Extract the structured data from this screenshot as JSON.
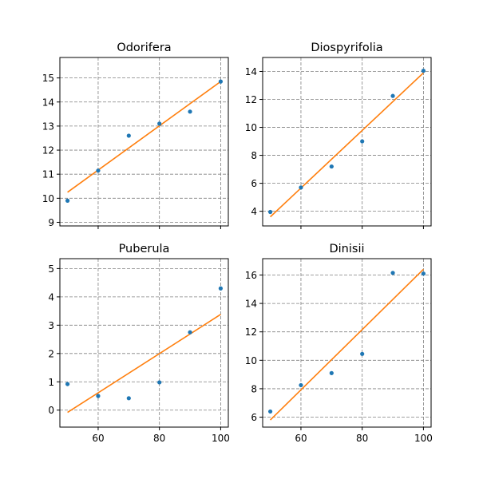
{
  "colors": {
    "points": "#1f77b4",
    "fit_line": "#ff7f0e",
    "grid": "#808080",
    "axes": "#000000"
  },
  "chart_data": [
    {
      "type": "scatter",
      "title": "Odorifera",
      "x": [
        50,
        60,
        70,
        80,
        90,
        100
      ],
      "y": [
        9.9,
        11.15,
        12.6,
        13.1,
        13.6,
        14.85
      ],
      "fit": [
        [
          50,
          10.25
        ],
        [
          100,
          14.85
        ]
      ],
      "xlim": [
        47.5,
        102.5
      ],
      "ylim": [
        8.85,
        15.85
      ],
      "xticks": [
        60,
        80,
        100
      ],
      "yticks": [
        9,
        10,
        11,
        12,
        13,
        14,
        15
      ],
      "xtick_labels_visible": false,
      "grid": true
    },
    {
      "type": "scatter",
      "title": "Diospyrifolia",
      "x": [
        50,
        60,
        70,
        80,
        90,
        100
      ],
      "y": [
        3.95,
        5.7,
        7.2,
        9.0,
        12.25,
        14.05
      ],
      "fit": [
        [
          50,
          3.6
        ],
        [
          100,
          13.9
        ]
      ],
      "xlim": [
        47.5,
        102.5
      ],
      "ylim": [
        2.95,
        15.0
      ],
      "xticks": [
        60,
        80,
        100
      ],
      "yticks": [
        4,
        6,
        8,
        10,
        12,
        14
      ],
      "xtick_labels_visible": false,
      "grid": true
    },
    {
      "type": "scatter",
      "title": "Puberula",
      "x": [
        50,
        60,
        70,
        80,
        90,
        100
      ],
      "y": [
        0.92,
        0.5,
        0.42,
        0.98,
        2.75,
        4.3
      ],
      "fit": [
        [
          50,
          -0.08
        ],
        [
          100,
          3.38
        ]
      ],
      "xlim": [
        47.5,
        102.5
      ],
      "ylim": [
        -0.6,
        5.35
      ],
      "xticks": [
        60,
        80,
        100
      ],
      "yticks": [
        0,
        1,
        2,
        3,
        4,
        5
      ],
      "xtick_labels_visible": true,
      "grid": true
    },
    {
      "type": "scatter",
      "title": "Dinisii",
      "x": [
        50,
        60,
        70,
        80,
        90,
        100
      ],
      "y": [
        6.4,
        8.25,
        9.1,
        10.45,
        16.15,
        16.1
      ],
      "fit": [
        [
          50,
          5.8
        ],
        [
          100,
          16.4
        ]
      ],
      "xlim": [
        47.5,
        102.5
      ],
      "ylim": [
        5.3,
        17.15
      ],
      "xticks": [
        60,
        80,
        100
      ],
      "yticks": [
        6,
        8,
        10,
        12,
        14,
        16
      ],
      "xtick_labels_visible": true,
      "grid": true
    }
  ]
}
